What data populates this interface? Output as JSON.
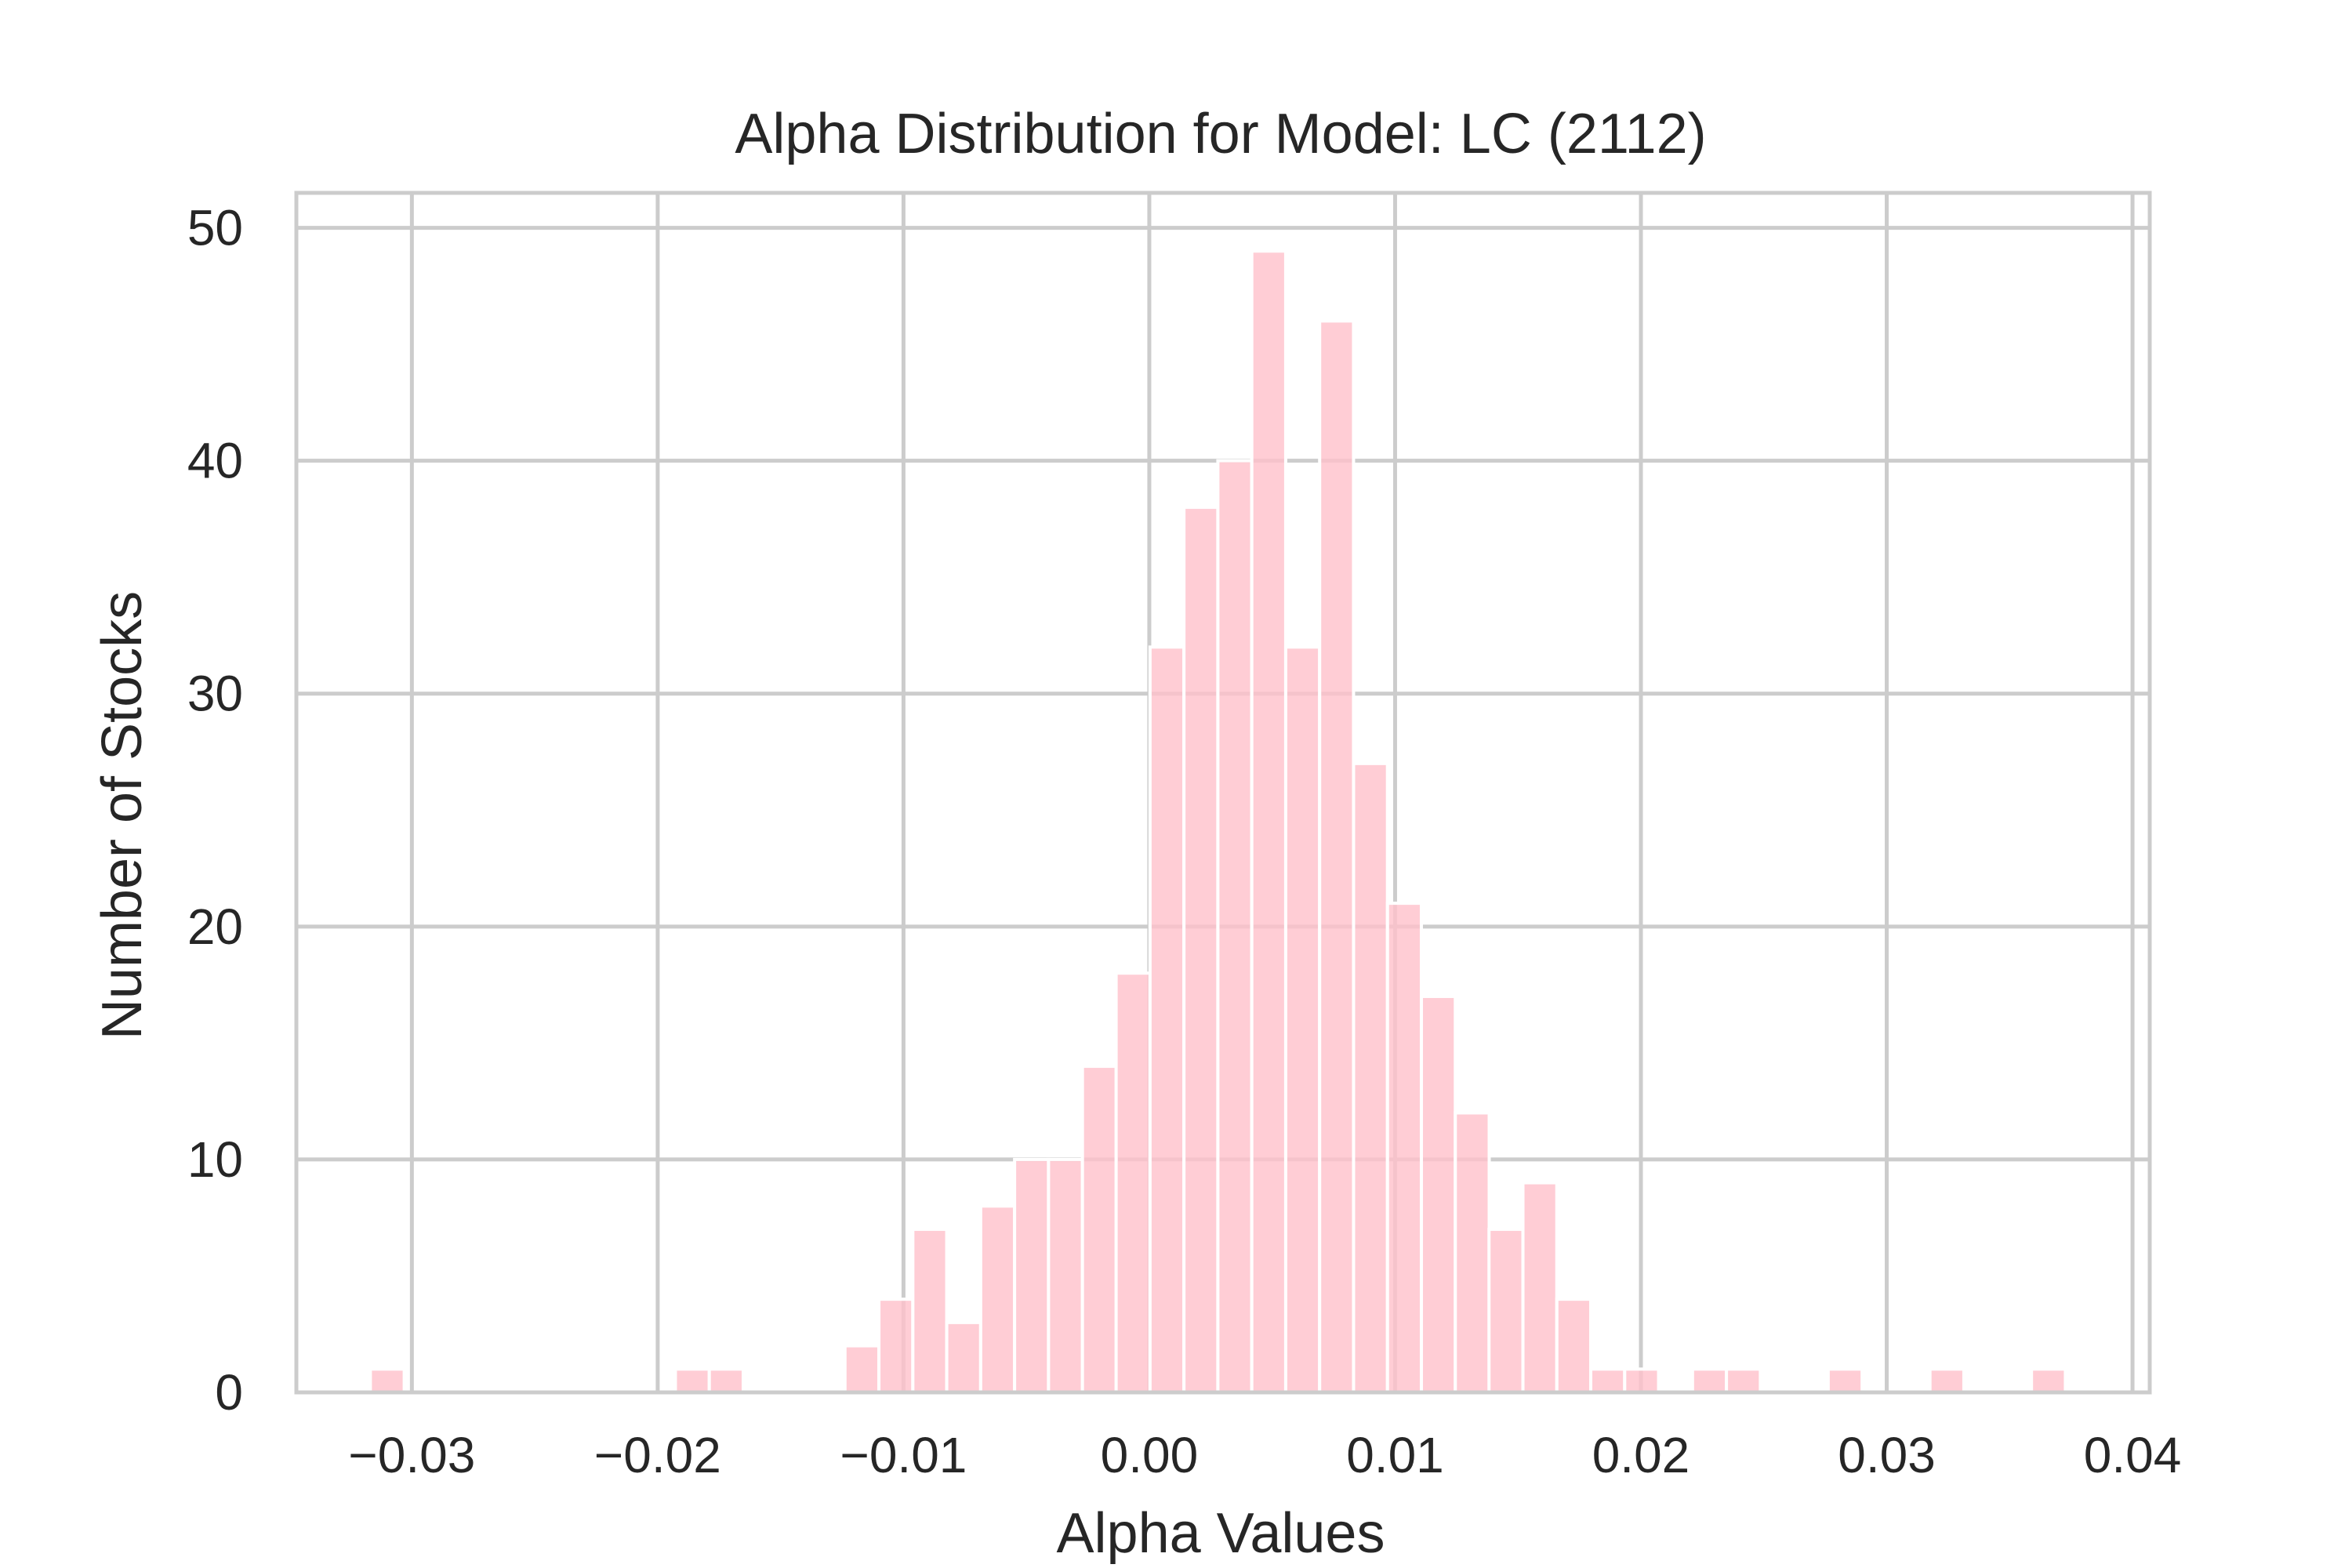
{
  "chart_data": {
    "type": "bar",
    "title": "Alpha Distribution for Model: LC (2112)",
    "xlabel": "Alpha Values",
    "ylabel": "Number of Stocks",
    "xlim": [
      -0.0347,
      0.0407
    ],
    "ylim": [
      0,
      51.5
    ],
    "grid": true,
    "bar_color": "#ffc0cb",
    "bin_width": 0.001379,
    "x_ticks": [
      -0.03,
      -0.02,
      -0.01,
      0.0,
      0.01,
      0.02,
      0.03,
      0.04
    ],
    "x_tick_labels": [
      "−0.03",
      "−0.02",
      "−0.01",
      "0.00",
      "0.01",
      "0.02",
      "0.03",
      "0.04"
    ],
    "y_ticks": [
      0,
      10,
      20,
      30,
      40,
      50
    ],
    "y_tick_labels": [
      "0",
      "10",
      "20",
      "30",
      "40",
      "50"
    ],
    "bins": [
      {
        "x": -0.03169,
        "count": 1
      },
      {
        "x": -0.01928,
        "count": 1
      },
      {
        "x": -0.0179,
        "count": 1
      },
      {
        "x": -0.01238,
        "count": 2
      },
      {
        "x": -0.011,
        "count": 4
      },
      {
        "x": -0.00962,
        "count": 7
      },
      {
        "x": -0.00824,
        "count": 3
      },
      {
        "x": -0.00686,
        "count": 8
      },
      {
        "x": -0.00548,
        "count": 10
      },
      {
        "x": -0.0041,
        "count": 10
      },
      {
        "x": -0.00272,
        "count": 14
      },
      {
        "x": -0.00135,
        "count": 18
      },
      {
        "x": 3e-05,
        "count": 32
      },
      {
        "x": 0.00141,
        "count": 38
      },
      {
        "x": 0.00279,
        "count": 40
      },
      {
        "x": 0.00417,
        "count": 49
      },
      {
        "x": 0.00555,
        "count": 32
      },
      {
        "x": 0.00693,
        "count": 46
      },
      {
        "x": 0.00831,
        "count": 27
      },
      {
        "x": 0.00969,
        "count": 21
      },
      {
        "x": 0.01107,
        "count": 17
      },
      {
        "x": 0.01245,
        "count": 12
      },
      {
        "x": 0.01382,
        "count": 7
      },
      {
        "x": 0.0152,
        "count": 9
      },
      {
        "x": 0.01658,
        "count": 4
      },
      {
        "x": 0.01796,
        "count": 1
      },
      {
        "x": 0.01934,
        "count": 1
      },
      {
        "x": 0.0221,
        "count": 1
      },
      {
        "x": 0.02348,
        "count": 1
      },
      {
        "x": 0.02762,
        "count": 1
      },
      {
        "x": 0.03176,
        "count": 1
      },
      {
        "x": 0.03589,
        "count": 1
      }
    ]
  }
}
